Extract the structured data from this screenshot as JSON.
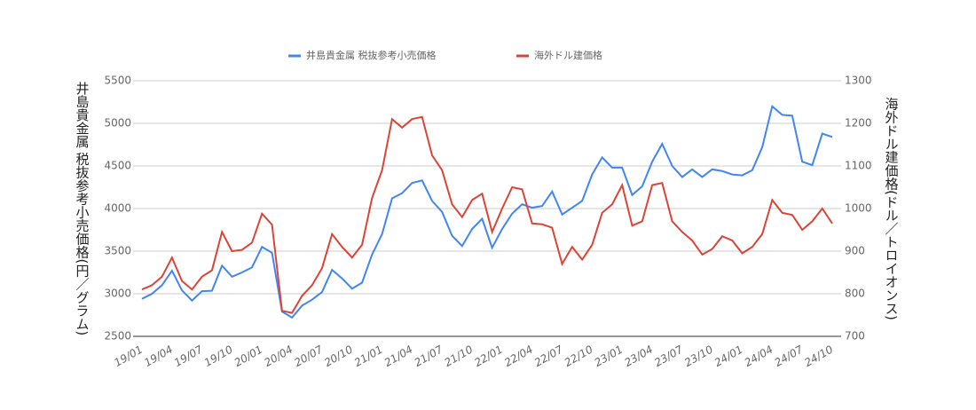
{
  "chart_data": {
    "type": "line",
    "legend": "top",
    "categories": [
      "19/01",
      null,
      null,
      "19/04",
      null,
      null,
      "19/07",
      null,
      null,
      "19/10",
      null,
      null,
      "20/01",
      null,
      null,
      "20/04",
      null,
      null,
      "20/07",
      null,
      null,
      "20/10",
      null,
      null,
      "21/01",
      null,
      null,
      "21/04",
      null,
      null,
      "21/07",
      null,
      null,
      "21/10",
      null,
      null,
      "22/01",
      null,
      null,
      "22/04",
      null,
      null,
      "22/07",
      null,
      null,
      "22/10",
      null,
      null,
      "23/01",
      null,
      null,
      "23/04",
      null,
      null,
      "23/07",
      null,
      null,
      "23/10",
      null,
      null,
      "24/01",
      null,
      null,
      "24/04",
      null,
      null,
      "24/07",
      null,
      null,
      "24/10"
    ],
    "y_label": "井島貴金属 税抜参考小売価格(円／グラム)",
    "y2_label": "海外ドル建価格(ドル／トロイオンス)",
    "ylim": [
      2500,
      5500
    ],
    "yticks": [
      2500,
      3000,
      3500,
      4000,
      4500,
      5000,
      5500
    ],
    "y2lim": [
      700,
      1300
    ],
    "y2ticks": [
      700,
      800,
      900,
      1000,
      1100,
      1200,
      1300
    ],
    "grid": true,
    "series": [
      {
        "name": "井島貴金属 税抜参考小売価格",
        "color": "#4285f4",
        "values": [
          2940,
          3000,
          3100,
          3270,
          3040,
          2920,
          3030,
          3035,
          3330,
          3200,
          3250,
          3310,
          3550,
          3480,
          2790,
          2720,
          2860,
          2930,
          3020,
          3280,
          3180,
          3060,
          3130,
          3460,
          3700,
          4120,
          4180,
          4300,
          4330,
          4090,
          3960,
          3680,
          3560,
          3760,
          3880,
          3540,
          3760,
          3940,
          4050,
          4010,
          4030,
          4200,
          3930,
          4010,
          4090,
          4400,
          4600,
          4480,
          4480,
          4160,
          4260,
          4550,
          4760,
          4500,
          4370,
          4460,
          4370,
          4460,
          4440,
          4400,
          4390,
          4450,
          4720,
          5200,
          5100,
          5090,
          4550,
          4510,
          4880,
          4840
        ]
      },
      {
        "name": "海外ドル建価格",
        "color": "#db4437",
        "axis": "y2",
        "values": [
          810,
          820,
          840,
          885,
          830,
          810,
          840,
          855,
          945,
          900,
          903,
          920,
          988,
          962,
          760,
          755,
          795,
          820,
          860,
          940,
          910,
          885,
          915,
          1025,
          1090,
          1210,
          1190,
          1210,
          1215,
          1125,
          1090,
          1010,
          980,
          1020,
          1035,
          945,
          1000,
          1050,
          1045,
          965,
          963,
          955,
          870,
          910,
          880,
          915,
          990,
          1010,
          1055,
          960,
          970,
          1055,
          1060,
          970,
          945,
          925,
          892,
          905,
          935,
          925,
          895,
          910,
          940,
          1020,
          990,
          985,
          950,
          970,
          1000,
          965
        ]
      }
    ]
  }
}
